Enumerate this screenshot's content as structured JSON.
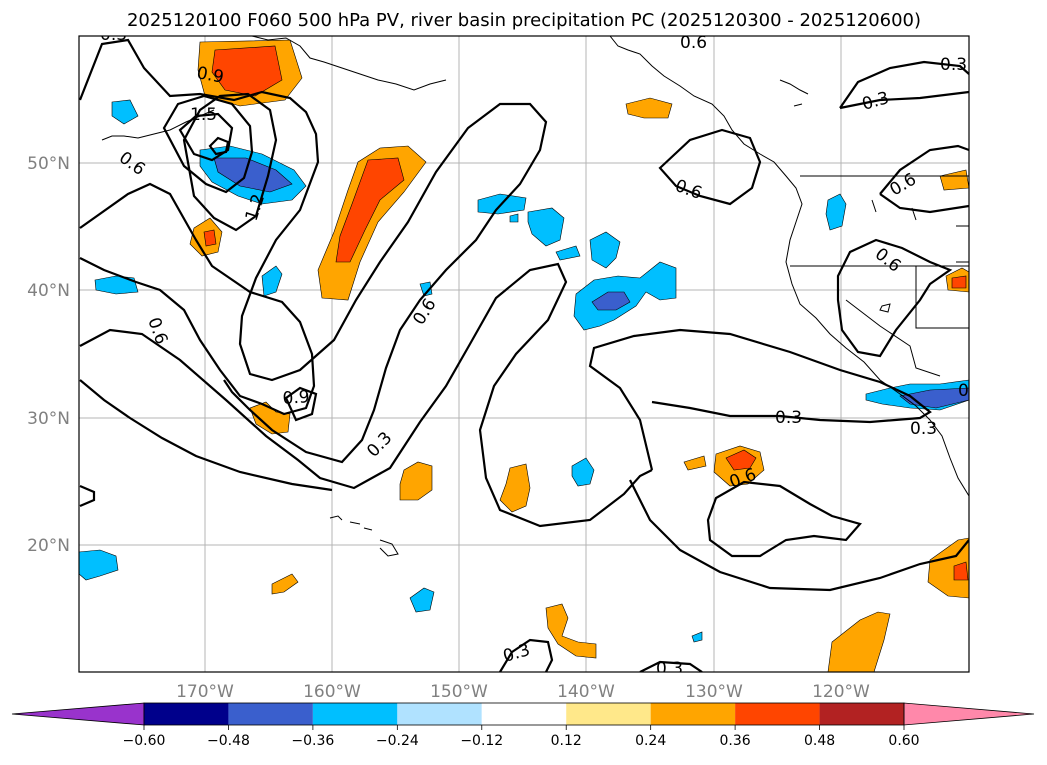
{
  "title": "2025120100 F060 500 hPa PV, river basin precipitation PC (2025120300 - 2025120600)",
  "lat_labels": [
    "50°N",
    "40°N",
    "30°N",
    "20°N"
  ],
  "lon_labels": [
    "170°W",
    "160°W",
    "150°W",
    "140°W",
    "130°W",
    "120°W"
  ],
  "colorbar": {
    "ticks": [
      "−0.60",
      "−0.48",
      "−0.36",
      "−0.24",
      "−0.12",
      "0.12",
      "0.24",
      "0.36",
      "0.48",
      "0.60"
    ],
    "colors": [
      "#9933cc",
      "#00008b",
      "#3a5fcd",
      "#00bfff",
      "#b0e2ff",
      "#ffffff",
      "#ffe88a",
      "#ffa500",
      "#ff4500",
      "#b22222",
      "#ff88aa"
    ]
  },
  "contour_labels": [
    "0.6",
    "0.3",
    "0.9",
    "1.5",
    "0.6",
    "1.2",
    "0.6",
    "0.6",
    "0.6",
    "0.9",
    "0.3",
    "0.6",
    "0.3",
    "0.6",
    "0.3",
    "0.3",
    "0.3",
    "0.6",
    "0.6",
    "0.3",
    "0.3"
  ]
}
